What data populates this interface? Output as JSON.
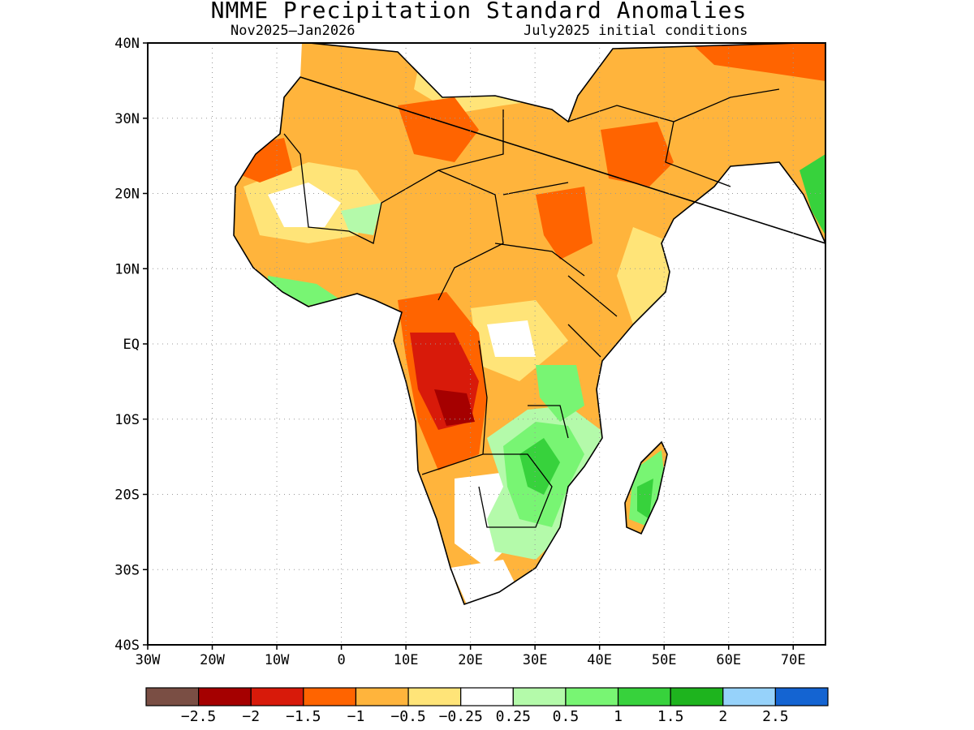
{
  "title": "NMME Precipitation Standard Anomalies",
  "subtitle_left": "Nov2025–Jan2026",
  "subtitle_right": "July2025 initial conditions",
  "axes": {
    "lat_labels": [
      "40N",
      "30N",
      "20N",
      "10N",
      "EQ",
      "10S",
      "20S",
      "30S",
      "40S"
    ],
    "lon_labels": [
      "30W",
      "20W",
      "10W",
      "0",
      "10E",
      "20E",
      "30E",
      "40E",
      "50E",
      "60E",
      "70E"
    ],
    "lat_range": [
      -40,
      40
    ],
    "lon_range": [
      -30,
      75
    ],
    "grid": "dotted"
  },
  "colorbar": {
    "colors": [
      "#7a4e44",
      "#a50000",
      "#d81a0a",
      "#ff6400",
      "#ffb43c",
      "#ffe478",
      "#ffffff",
      "#b4faaa",
      "#78f573",
      "#37d23c",
      "#1eb41e",
      "#96d2fa",
      "#1464d2"
    ],
    "labels": [
      "−2.5",
      "−2",
      "−1.5",
      "−1",
      "−0.5",
      "−0.25",
      "0.25",
      "0.5",
      "1",
      "1.5",
      "2",
      "2.5"
    ]
  },
  "regions": [
    {
      "name": "Angola",
      "level": "-2"
    },
    {
      "name": "Southeast Africa",
      "level": "1"
    },
    {
      "name": "Madagascar",
      "level": "1"
    },
    {
      "name": "Sahara",
      "level": "-0.5"
    },
    {
      "name": "Arabian Peninsula",
      "level": "-1"
    }
  ]
}
